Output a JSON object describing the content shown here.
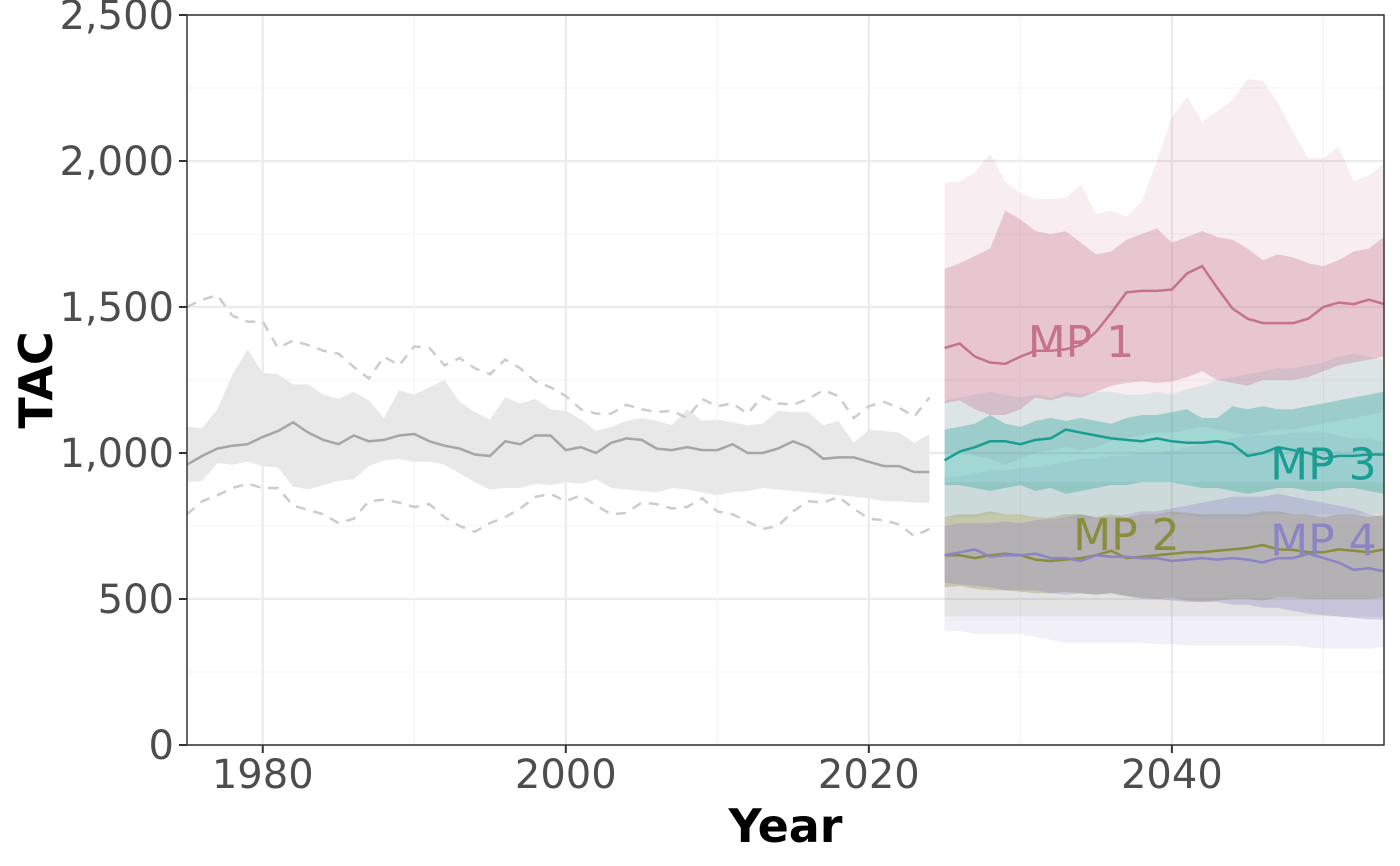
{
  "chart_data": {
    "type": "line",
    "xlabel": "Year",
    "ylabel": "TAC",
    "xlim": [
      1975,
      2054
    ],
    "ylim": [
      0,
      2500
    ],
    "grid": true,
    "legend": "none",
    "x_ticks": [
      1980,
      2000,
      2020,
      2040
    ],
    "x_tick_labels": [
      "1980",
      "2000",
      "2020",
      "2040"
    ],
    "y_ticks": [
      0,
      500,
      1000,
      1500,
      2000,
      2500
    ],
    "y_tick_labels": [
      "0",
      "500",
      "1,000",
      "1,500",
      "2,000",
      "2,500"
    ],
    "historical": {
      "color": "#a6a6a6",
      "band_color": "#e8e8e8",
      "x": [
        1975,
        1976,
        1977,
        1978,
        1979,
        1980,
        1981,
        1982,
        1983,
        1984,
        1985,
        1986,
        1987,
        1988,
        1989,
        1990,
        1991,
        1992,
        1993,
        1994,
        1995,
        1996,
        1997,
        1998,
        1999,
        2000,
        2001,
        2002,
        2003,
        2004,
        2005,
        2006,
        2007,
        2008,
        2009,
        2010,
        2011,
        2012,
        2013,
        2014,
        2015,
        2016,
        2017,
        2018,
        2019,
        2020,
        2021,
        2022,
        2023,
        2024
      ],
      "median": [
        960,
        990,
        1015,
        1025,
        1030,
        1055,
        1075,
        1105,
        1070,
        1045,
        1030,
        1060,
        1040,
        1045,
        1060,
        1065,
        1040,
        1025,
        1015,
        995,
        990,
        1040,
        1030,
        1060,
        1060,
        1010,
        1020,
        1000,
        1035,
        1050,
        1045,
        1015,
        1010,
        1020,
        1010,
        1010,
        1030,
        1000,
        1000,
        1015,
        1040,
        1020,
        980,
        985,
        985,
        970,
        955,
        955,
        935,
        935
      ],
      "lower": [
        900,
        905,
        965,
        960,
        970,
        955,
        950,
        885,
        875,
        890,
        905,
        910,
        955,
        975,
        980,
        970,
        970,
        960,
        930,
        900,
        875,
        880,
        880,
        895,
        890,
        900,
        895,
        910,
        880,
        875,
        870,
        865,
        880,
        875,
        865,
        855,
        865,
        870,
        880,
        875,
        870,
        865,
        860,
        855,
        850,
        845,
        835,
        835,
        830,
        830
      ],
      "upper": [
        1090,
        1085,
        1150,
        1270,
        1355,
        1275,
        1270,
        1235,
        1235,
        1200,
        1185,
        1210,
        1180,
        1120,
        1215,
        1200,
        1225,
        1250,
        1175,
        1140,
        1115,
        1190,
        1170,
        1185,
        1150,
        1145,
        1115,
        1075,
        1090,
        1110,
        1120,
        1110,
        1095,
        1150,
        1110,
        1115,
        1105,
        1095,
        1100,
        1145,
        1140,
        1140,
        1095,
        1110,
        1035,
        1080,
        1075,
        1070,
        1035,
        1065
      ],
      "q_upper": [
        1500,
        1525,
        1540,
        1470,
        1450,
        1450,
        1360,
        1385,
        1370,
        1350,
        1340,
        1295,
        1255,
        1330,
        1300,
        1365,
        1360,
        1300,
        1325,
        1290,
        1270,
        1320,
        1290,
        1245,
        1225,
        1195,
        1150,
        1135,
        1135,
        1165,
        1150,
        1140,
        1145,
        1120,
        1185,
        1160,
        1170,
        1135,
        1195,
        1170,
        1165,
        1185,
        1215,
        1195,
        1120,
        1160,
        1175,
        1155,
        1125,
        1190
      ],
      "q_lower": [
        790,
        835,
        855,
        880,
        895,
        880,
        880,
        820,
        805,
        790,
        760,
        775,
        835,
        840,
        830,
        815,
        825,
        780,
        750,
        730,
        760,
        780,
        810,
        850,
        860,
        835,
        855,
        820,
        790,
        795,
        830,
        825,
        810,
        815,
        845,
        800,
        790,
        765,
        740,
        750,
        800,
        835,
        830,
        850,
        810,
        775,
        770,
        755,
        715,
        740
      ]
    },
    "series": [
      {
        "name": "MP 1",
        "color": "#c5728c",
        "x": [
          2025,
          2026,
          2027,
          2028,
          2029,
          2030,
          2031,
          2032,
          2033,
          2034,
          2035,
          2036,
          2037,
          2038,
          2039,
          2040,
          2041,
          2042,
          2043,
          2044,
          2045,
          2046,
          2047,
          2048,
          2049,
          2050,
          2051,
          2052,
          2053,
          2054
        ],
        "median": [
          1360,
          1375,
          1330,
          1310,
          1305,
          1330,
          1350,
          1350,
          1355,
          1370,
          1415,
          1480,
          1550,
          1555,
          1555,
          1560,
          1615,
          1640,
          1565,
          1495,
          1460,
          1445,
          1445,
          1445,
          1460,
          1500,
          1515,
          1510,
          1525,
          1510
        ],
        "lower": [
          1170,
          1180,
          1150,
          1130,
          1130,
          1150,
          1190,
          1180,
          1195,
          1190,
          1210,
          1230,
          1240,
          1245,
          1240,
          1245,
          1260,
          1280,
          1250,
          1240,
          1230,
          1250,
          1250,
          1250,
          1260,
          1280,
          1300,
          1310,
          1320,
          1330
        ],
        "upper": [
          1630,
          1650,
          1675,
          1700,
          1830,
          1800,
          1760,
          1750,
          1760,
          1720,
          1680,
          1690,
          1730,
          1750,
          1770,
          1720,
          1740,
          1760,
          1740,
          1730,
          1700,
          1660,
          1680,
          1670,
          1650,
          1640,
          1660,
          1690,
          1700,
          1740
        ],
        "outer_lower": [
          1000,
          1010,
          990,
          980,
          960,
          980,
          1000,
          1010,
          1020,
          1010,
          1020,
          1040,
          1050,
          1060,
          1070,
          1070,
          1080,
          1090,
          1080,
          1070,
          1060,
          1070,
          1080,
          1080,
          1090,
          1100,
          1110,
          1120,
          1130,
          1140
        ],
        "outer_upper": [
          1925,
          1930,
          1960,
          2025,
          1930,
          1890,
          1870,
          1870,
          1875,
          1920,
          1820,
          1830,
          1810,
          1860,
          2000,
          2150,
          2220,
          2135,
          2170,
          2210,
          2280,
          2275,
          2200,
          2100,
          2010,
          2010,
          2050,
          1930,
          1950,
          1990
        ]
      },
      {
        "name": "MP 2",
        "color": "#8a8e3c",
        "x": [
          2025,
          2026,
          2027,
          2028,
          2029,
          2030,
          2031,
          2032,
          2033,
          2034,
          2035,
          2036,
          2037,
          2038,
          2039,
          2040,
          2041,
          2042,
          2043,
          2044,
          2045,
          2046,
          2047,
          2048,
          2049,
          2050,
          2051,
          2052,
          2053,
          2054
        ],
        "median": [
          650,
          650,
          640,
          650,
          655,
          650,
          635,
          630,
          635,
          640,
          650,
          665,
          640,
          645,
          650,
          655,
          660,
          660,
          665,
          670,
          675,
          685,
          670,
          668,
          660,
          660,
          670,
          665,
          660,
          670
        ],
        "lower": [
          540,
          545,
          535,
          530,
          530,
          525,
          520,
          520,
          525,
          520,
          515,
          520,
          510,
          505,
          500,
          505,
          495,
          490,
          495,
          500,
          500,
          495,
          505,
          505,
          500,
          500,
          500,
          500,
          500,
          505
        ],
        "upper": [
          780,
          790,
          790,
          800,
          790,
          790,
          780,
          780,
          790,
          790,
          780,
          790,
          780,
          790,
          790,
          800,
          795,
          790,
          790,
          790,
          790,
          800,
          800,
          790,
          790,
          780,
          790,
          790,
          780,
          790
        ],
        "outer_lower": [
          440,
          440,
          440,
          440,
          440,
          440,
          440,
          440,
          440,
          440,
          440,
          440,
          440,
          440,
          440,
          440,
          440,
          440,
          440,
          440,
          440,
          440,
          440,
          440,
          440,
          440,
          440,
          440,
          440,
          440
        ],
        "outer_upper": [
          900,
          900,
          900,
          900,
          900,
          900,
          900,
          900,
          900,
          900,
          900,
          900,
          900,
          900,
          900,
          900,
          900,
          900,
          900,
          900,
          900,
          900,
          900,
          900,
          900,
          900,
          900,
          900,
          900,
          900
        ]
      },
      {
        "name": "MP 3",
        "color": "#1a9e93",
        "x": [
          2025,
          2026,
          2027,
          2028,
          2029,
          2030,
          2031,
          2032,
          2033,
          2034,
          2035,
          2036,
          2037,
          2038,
          2039,
          2040,
          2041,
          2042,
          2043,
          2044,
          2045,
          2046,
          2047,
          2048,
          2049,
          2050,
          2051,
          2052,
          2053,
          2054
        ],
        "median": [
          975,
          1005,
          1020,
          1040,
          1040,
          1030,
          1045,
          1050,
          1080,
          1070,
          1060,
          1050,
          1045,
          1040,
          1050,
          1040,
          1035,
          1035,
          1040,
          1030,
          990,
          1000,
          1020,
          1010,
          1000,
          980,
          990,
          990,
          995,
          995
        ],
        "lower": [
          890,
          890,
          880,
          870,
          880,
          890,
          870,
          880,
          860,
          870,
          880,
          890,
          890,
          900,
          900,
          900,
          890,
          880,
          880,
          870,
          860,
          870,
          880,
          880,
          870,
          870,
          880,
          880,
          870,
          860
        ],
        "upper": [
          1080,
          1090,
          1100,
          1130,
          1100,
          1090,
          1110,
          1120,
          1110,
          1120,
          1110,
          1100,
          1120,
          1130,
          1130,
          1140,
          1150,
          1120,
          1120,
          1160,
          1150,
          1160,
          1150,
          1150,
          1160,
          1170,
          1180,
          1190,
          1200,
          1210
        ],
        "outer_lower": [
          780,
          780,
          780,
          790,
          790,
          790,
          780,
          780,
          780,
          770,
          780,
          780,
          790,
          790,
          790,
          790,
          790,
          780,
          780,
          780,
          780,
          790,
          790,
          790,
          790,
          790,
          790,
          790,
          790,
          790
        ],
        "outer_upper": [
          1180,
          1190,
          1200,
          1210,
          1200,
          1190,
          1200,
          1190,
          1210,
          1200,
          1210,
          1210,
          1200,
          1200,
          1210,
          1200,
          1220,
          1230,
          1250,
          1260,
          1270,
          1280,
          1290,
          1290,
          1300,
          1310,
          1330,
          1340,
          1330,
          1320
        ]
      },
      {
        "name": "MP 4",
        "color": "#8b84c5",
        "x": [
          2025,
          2026,
          2027,
          2028,
          2029,
          2030,
          2031,
          2032,
          2033,
          2034,
          2035,
          2036,
          2037,
          2038,
          2039,
          2040,
          2041,
          2042,
          2043,
          2044,
          2045,
          2046,
          2047,
          2048,
          2049,
          2050,
          2051,
          2052,
          2053,
          2054
        ],
        "median": [
          650,
          660,
          670,
          645,
          650,
          650,
          655,
          640,
          640,
          630,
          650,
          645,
          645,
          640,
          640,
          630,
          635,
          640,
          635,
          640,
          635,
          625,
          640,
          640,
          655,
          640,
          625,
          600,
          605,
          595
        ],
        "lower": [
          555,
          550,
          545,
          540,
          530,
          530,
          530,
          520,
          515,
          520,
          515,
          520,
          510,
          500,
          500,
          495,
          490,
          490,
          490,
          480,
          480,
          470,
          470,
          460,
          450,
          445,
          440,
          435,
          430,
          430
        ],
        "upper": [
          750,
          760,
          760,
          760,
          765,
          760,
          770,
          775,
          780,
          790,
          780,
          780,
          790,
          800,
          800,
          810,
          820,
          830,
          840,
          850,
          850,
          850,
          860,
          850,
          840,
          830,
          820,
          810,
          790,
          780
        ],
        "outer_lower": [
          390,
          390,
          380,
          380,
          380,
          380,
          370,
          360,
          350,
          350,
          350,
          350,
          350,
          350,
          345,
          345,
          340,
          340,
          340,
          340,
          340,
          340,
          340,
          340,
          335,
          330,
          330,
          330,
          330,
          335
        ],
        "outer_upper": [
          920,
          920,
          930,
          940,
          940,
          950,
          950,
          960,
          970,
          980,
          980,
          990,
          990,
          1000,
          1000,
          1010,
          1020,
          1030,
          1040,
          1050,
          1060,
          1060,
          1060,
          1070,
          1070,
          1070,
          1060,
          1050,
          1050,
          1040
        ]
      }
    ]
  }
}
